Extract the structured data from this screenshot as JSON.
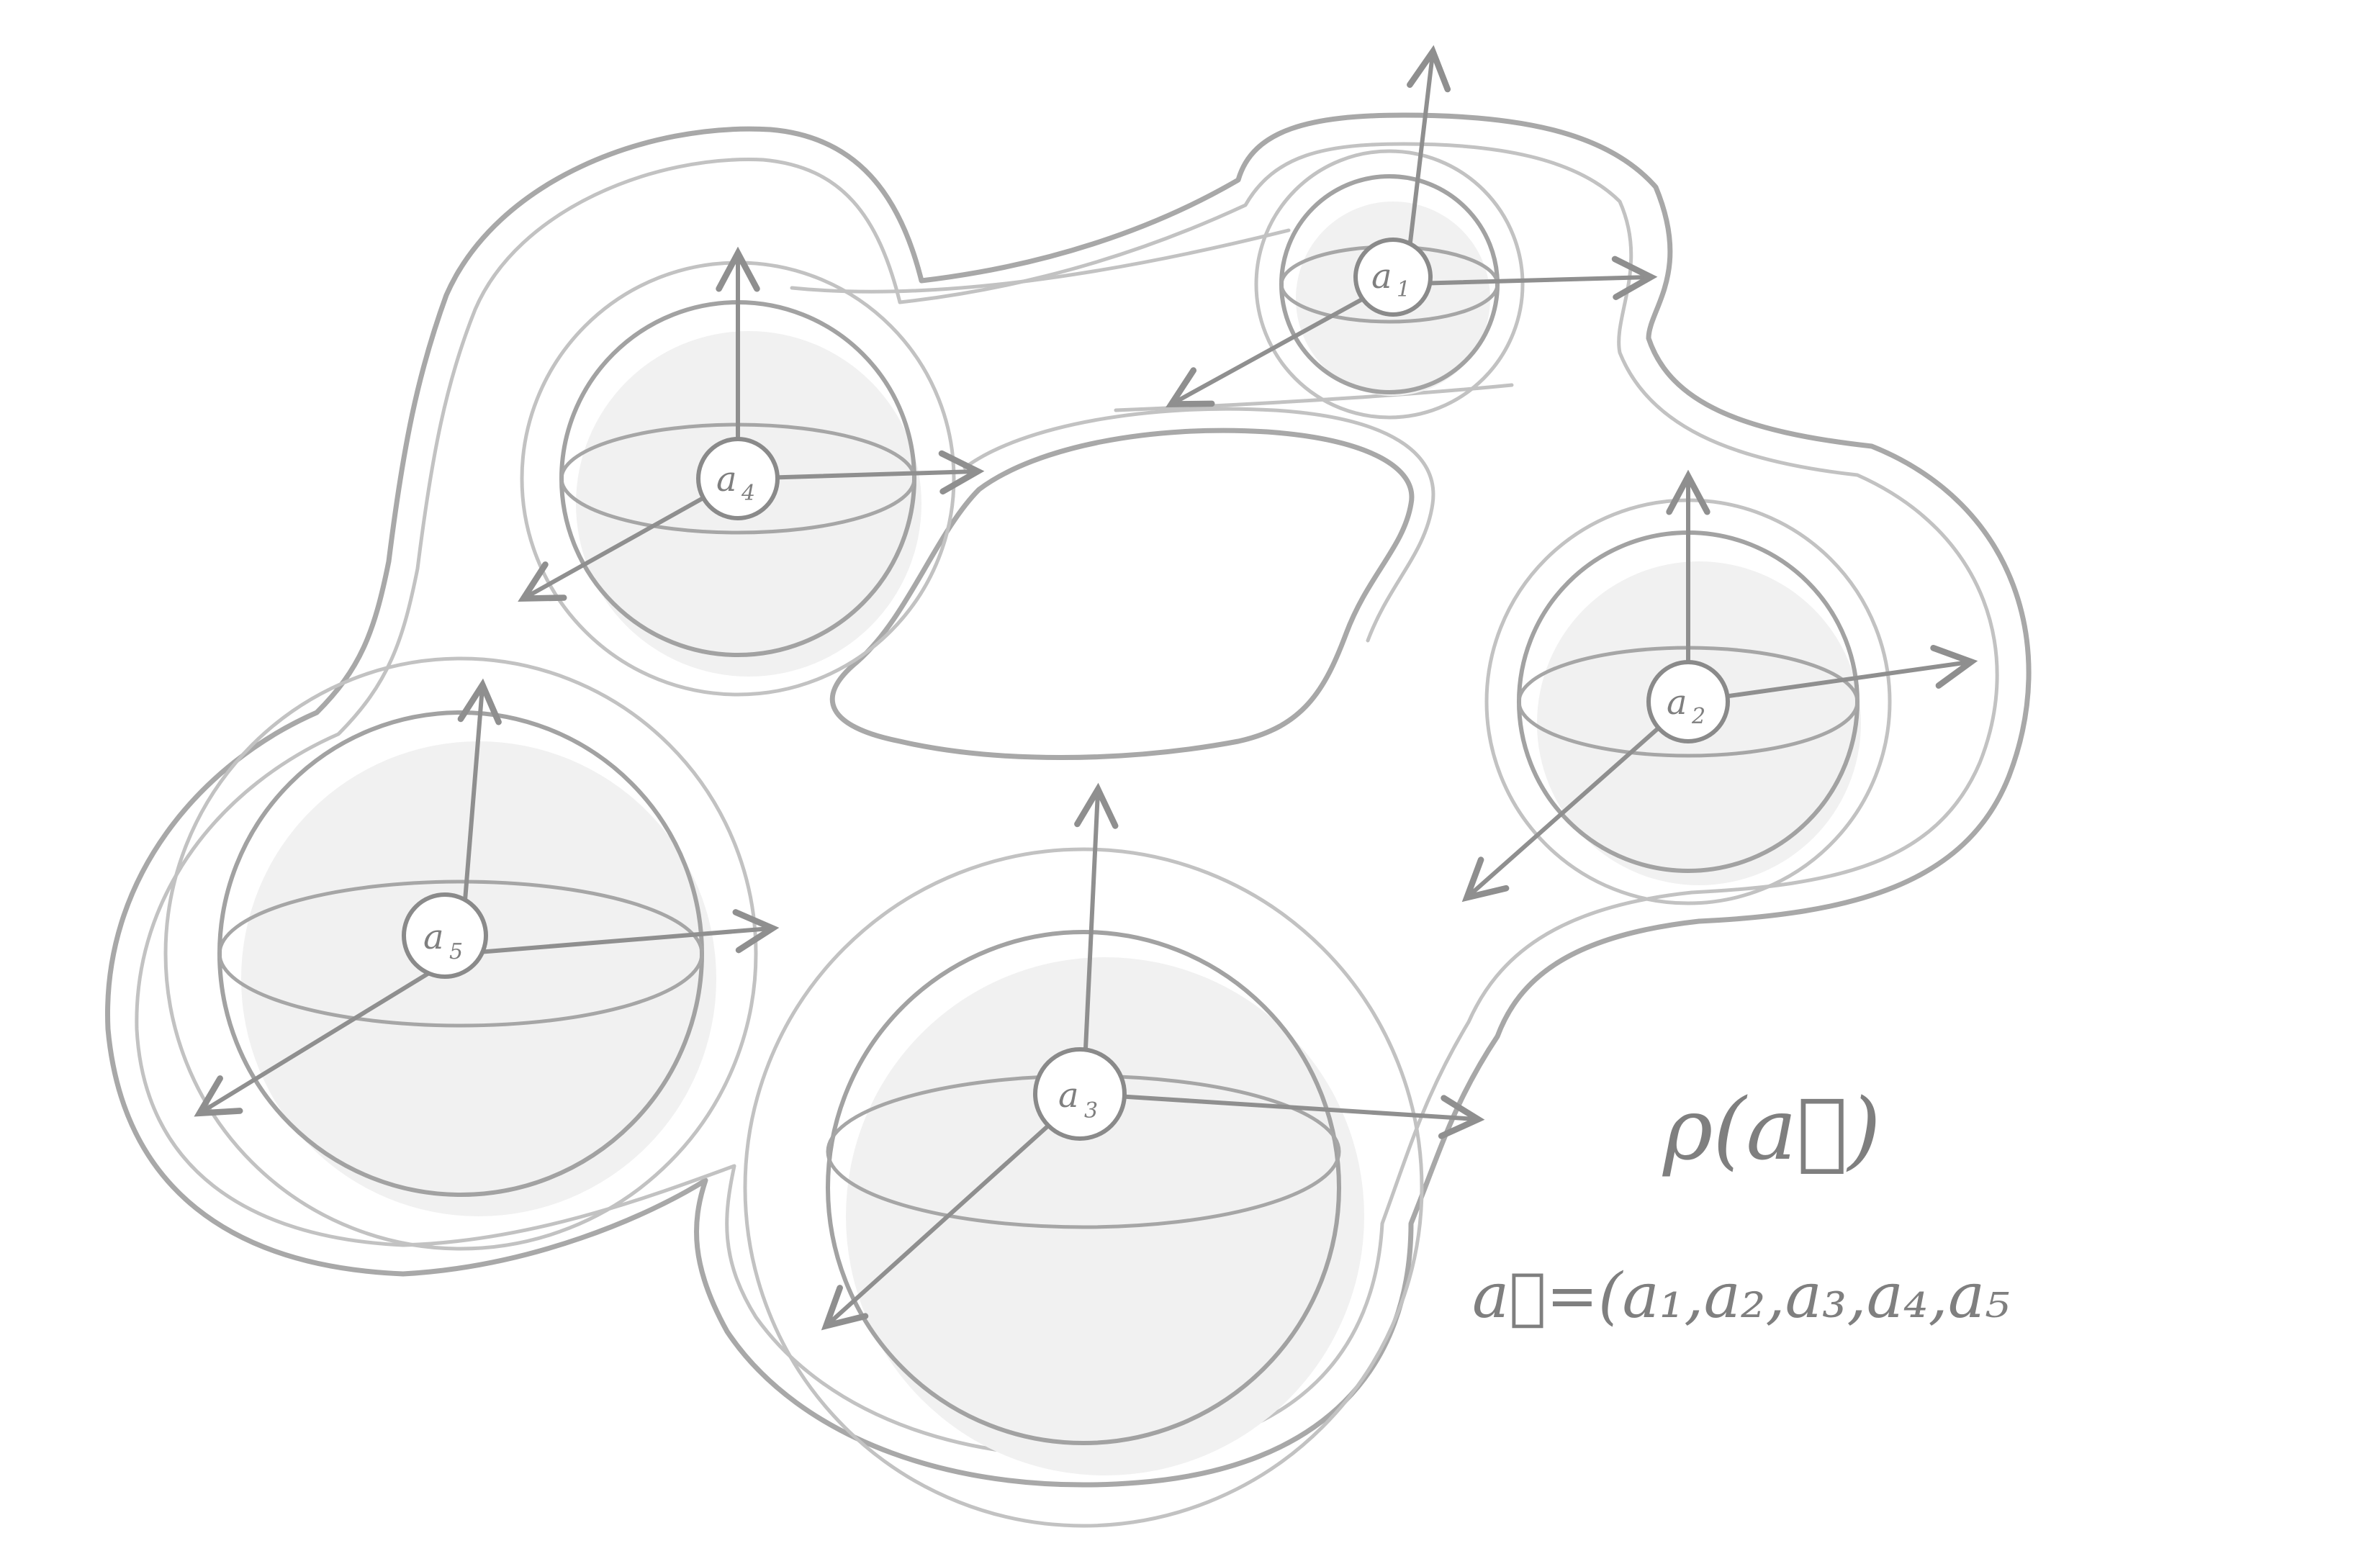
{
  "nuclei": [
    {
      "id": "a1",
      "symbol": "a",
      "index": "1"
    },
    {
      "id": "a2",
      "symbol": "a",
      "index": "2"
    },
    {
      "id": "a3",
      "symbol": "a",
      "index": "3"
    },
    {
      "id": "a4",
      "symbol": "a",
      "index": "4"
    },
    {
      "id": "a5",
      "symbol": "a",
      "index": "5"
    }
  ],
  "formula": {
    "density": "ρ(a⃗)",
    "vector": "a⃗=(a₁,a₂,a₃,a₄,a₅"
  }
}
